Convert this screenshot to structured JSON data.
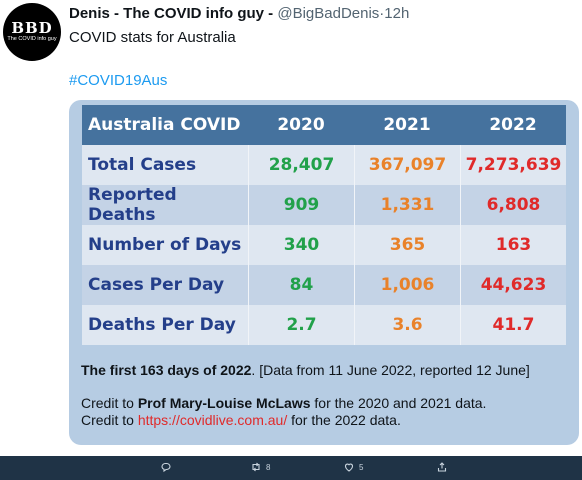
{
  "tweet": {
    "avatar_text": "BBD",
    "avatar_sub": "The COVID info guy",
    "display_name": "Denis - The COVID info guy -",
    "handle": "@BigBadDenis",
    "separator": "·",
    "time": "12h",
    "text": "COVID stats for Australia",
    "hashtag": "#COVID19Aus"
  },
  "table": {
    "header": [
      "Australia COVID",
      "2020",
      "2021",
      "2022"
    ],
    "rows": [
      [
        "Total Cases",
        "28,407",
        "367,097",
        "7,273,639"
      ],
      [
        "Reported Deaths",
        "909",
        "1,331",
        "6,808"
      ],
      [
        "Number of Days",
        "340",
        "365",
        "163"
      ],
      [
        "Cases Per Day",
        "84",
        "1,006",
        "44,623"
      ],
      [
        "Deaths Per Day",
        "2.7",
        "3.6",
        "41.7"
      ]
    ],
    "colors": {
      "2020": "#21a14a",
      "2021": "#e9822a",
      "2022": "#e02a2a",
      "header_bg": "#45729e",
      "label": "#243f8a"
    }
  },
  "note": {
    "bold": "The first 163 days of 2022",
    "rest": ". [Data from 11 June 2022, reported 12 June]"
  },
  "credit": {
    "l1_pre": "Credit to ",
    "l1_name": "Prof Mary-Louise McLaws",
    "l1_post": " for the 2020 and 2021 data.",
    "l2_pre": "Credit to ",
    "l2_link": "https://covidlive.com.au/",
    "l2_post": " for the 2022 data."
  },
  "actions": {
    "retweets": "8",
    "likes": "5"
  }
}
